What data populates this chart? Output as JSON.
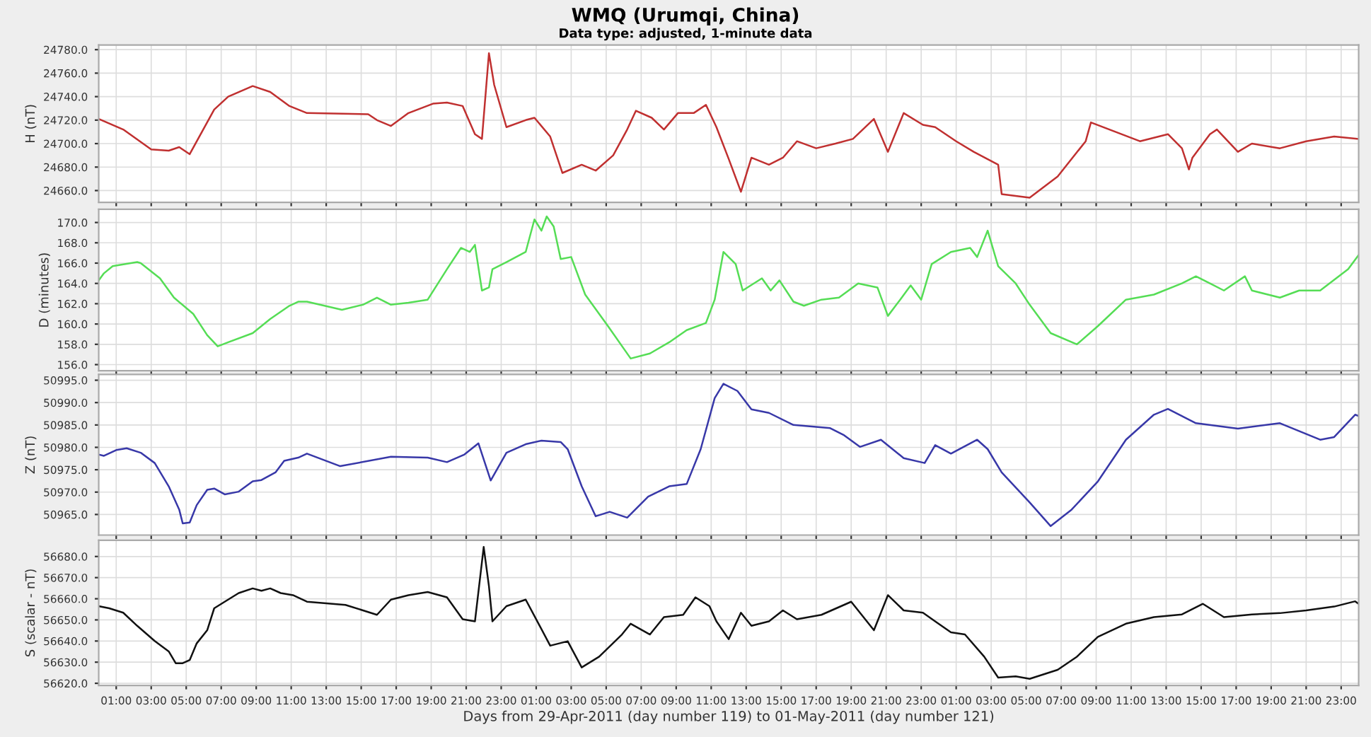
{
  "chart_data": [
    {
      "type": "line",
      "title": "WMQ (Urumqi, China)",
      "subtitle": "Data type: adjusted, 1-minute data",
      "ylabel": "H (nT)",
      "xlim": [
        "2011-04-29T00:00",
        "2011-05-02T00:00"
      ],
      "ylim": [
        24650,
        24784
      ],
      "yticks": [
        {
          "value": 24660,
          "label": "24660.0"
        },
        {
          "value": 24680,
          "label": "24680.0"
        },
        {
          "value": 24700,
          "label": "24700.0"
        },
        {
          "value": 24720,
          "label": "24720.0"
        },
        {
          "value": 24740,
          "label": "24740.0"
        },
        {
          "value": 24760,
          "label": "24760.0"
        },
        {
          "value": 24780,
          "label": "24780.0"
        }
      ],
      "grid": true,
      "tick_labels": "y",
      "series": [
        {
          "color": "#c03030",
          "x": [
            "2011-04-29T00:00",
            "2011-04-29T01:24",
            "2011-04-29T03:00",
            "2011-04-29T04:00",
            "2011-04-29T04:36",
            "2011-04-29T05:12",
            "2011-04-29T06:36",
            "2011-04-29T07:24",
            "2011-04-29T08:48",
            "2011-04-29T09:48",
            "2011-04-29T10:54",
            "2011-04-29T11:54",
            "2011-04-29T15:24",
            "2011-04-29T15:54",
            "2011-04-29T16:42",
            "2011-04-29T17:42",
            "2011-04-29T19:06",
            "2011-04-29T19:54",
            "2011-04-29T20:48",
            "2011-04-29T21:30",
            "2011-04-29T21:54",
            "2011-04-29T22:18",
            "2011-04-29T22:36",
            "2011-04-29T23:18",
            "2011-04-30T00:24",
            "2011-04-30T00:54",
            "2011-04-30T01:48",
            "2011-04-30T02:30",
            "2011-04-30T03:36",
            "2011-04-30T04:24",
            "2011-04-30T05:24",
            "2011-04-30T06:12",
            "2011-04-30T06:42",
            "2011-04-30T07:36",
            "2011-04-30T08:18",
            "2011-04-30T09:06",
            "2011-04-30T10:00",
            "2011-04-30T10:42",
            "2011-04-30T11:18",
            "2011-04-30T12:00",
            "2011-04-30T12:42",
            "2011-04-30T13:18",
            "2011-04-30T14:18",
            "2011-04-30T15:06",
            "2011-04-30T15:54",
            "2011-04-30T17:00",
            "2011-04-30T18:06",
            "2011-04-30T19:06",
            "2011-04-30T20:18",
            "2011-04-30T21:06",
            "2011-04-30T22:00",
            "2011-04-30T23:06",
            "2011-04-30T23:48",
            "2011-05-01T01:00",
            "2011-05-01T02:00",
            "2011-05-01T03:24",
            "2011-05-01T03:36",
            "2011-05-01T05:12",
            "2011-05-01T06:48",
            "2011-05-01T08:24",
            "2011-05-01T08:42",
            "2011-05-01T11:30",
            "2011-05-01T13:06",
            "2011-05-01T13:54",
            "2011-05-01T14:18",
            "2011-05-01T14:30",
            "2011-05-01T15:30",
            "2011-05-01T15:54",
            "2011-05-01T17:06",
            "2011-05-01T17:54",
            "2011-05-01T19:30",
            "2011-05-01T21:00",
            "2011-05-01T22:36",
            "2011-05-02T00:00"
          ],
          "values": [
            24721,
            24712,
            24695,
            24694,
            24697,
            24691,
            24729,
            24740,
            24749,
            24744,
            24732,
            24726,
            24725,
            24720,
            24715,
            24726,
            24734,
            24735,
            24732,
            24708,
            24704,
            24777,
            24750,
            24714,
            24720,
            24722,
            24706,
            24675,
            24682,
            24677,
            24690,
            24712,
            24728,
            24722,
            24712,
            24726,
            24726,
            24733,
            24714,
            24687,
            24659,
            24688,
            24682,
            24688,
            24702,
            24696,
            24700,
            24704,
            24721,
            24693,
            24726,
            24716,
            24714,
            24702,
            24693,
            24682,
            24657,
            24654,
            24672,
            24702,
            24718,
            24702,
            24708,
            24696,
            24678,
            24688,
            24708,
            24712,
            24693,
            24700,
            24696,
            24702,
            24706,
            24704
          ]
        }
      ]
    },
    {
      "type": "line",
      "ylabel": "D (minutes)",
      "xlim": [
        "2011-04-29T00:00",
        "2011-05-02T00:00"
      ],
      "ylim": [
        155.4,
        171.3
      ],
      "yticks": [
        {
          "value": 156,
          "label": "156.0"
        },
        {
          "value": 158,
          "label": "158.0"
        },
        {
          "value": 160,
          "label": "160.0"
        },
        {
          "value": 162,
          "label": "162.0"
        },
        {
          "value": 164,
          "label": "164.0"
        },
        {
          "value": 166,
          "label": "166.0"
        },
        {
          "value": 168,
          "label": "168.0"
        },
        {
          "value": 170,
          "label": "170.0"
        }
      ],
      "grid": true,
      "tick_labels": "y",
      "series": [
        {
          "color": "#55dd55",
          "x": [
            "2011-04-29T00:00",
            "2011-04-29T00:18",
            "2011-04-29T00:48",
            "2011-04-29T02:12",
            "2011-04-29T02:24",
            "2011-04-29T03:30",
            "2011-04-29T04:18",
            "2011-04-29T05:24",
            "2011-04-29T06:12",
            "2011-04-29T06:48",
            "2011-04-29T07:24",
            "2011-04-29T08:48",
            "2011-04-29T09:48",
            "2011-04-29T10:54",
            "2011-04-29T11:24",
            "2011-04-29T11:54",
            "2011-04-29T13:54",
            "2011-04-29T15:06",
            "2011-04-29T15:54",
            "2011-04-29T16:42",
            "2011-04-29T17:42",
            "2011-04-29T18:48",
            "2011-04-29T19:54",
            "2011-04-29T20:42",
            "2011-04-29T21:12",
            "2011-04-29T21:30",
            "2011-04-29T21:54",
            "2011-04-29T22:18",
            "2011-04-29T22:30",
            "2011-04-29T23:18",
            "2011-04-30T00:24",
            "2011-04-30T00:54",
            "2011-04-30T01:18",
            "2011-04-30T01:36",
            "2011-04-30T02:00",
            "2011-04-30T02:24",
            "2011-04-30T03:00",
            "2011-04-30T03:48",
            "2011-04-30T05:06",
            "2011-04-30T06:24",
            "2011-04-30T07:30",
            "2011-04-30T08:36",
            "2011-04-30T09:36",
            "2011-04-30T10:42",
            "2011-04-30T11:12",
            "2011-04-30T11:42",
            "2011-04-30T12:24",
            "2011-04-30T12:48",
            "2011-04-30T13:54",
            "2011-04-30T14:24",
            "2011-04-30T14:54",
            "2011-04-30T15:42",
            "2011-04-30T16:18",
            "2011-04-30T17:18",
            "2011-04-30T18:18",
            "2011-04-30T19:24",
            "2011-04-30T20:30",
            "2011-04-30T21:06",
            "2011-04-30T21:48",
            "2011-04-30T22:24",
            "2011-04-30T23:00",
            "2011-04-30T23:36",
            "2011-05-01T00:42",
            "2011-05-01T01:48",
            "2011-05-01T02:12",
            "2011-05-01T02:48",
            "2011-05-01T03:24",
            "2011-05-01T04:24",
            "2011-05-01T05:12",
            "2011-05-01T06:24",
            "2011-05-01T07:54",
            "2011-05-01T09:06",
            "2011-05-01T10:42",
            "2011-05-01T12:18",
            "2011-05-01T13:54",
            "2011-05-01T14:42",
            "2011-05-01T15:30",
            "2011-05-01T16:18",
            "2011-05-01T17:30",
            "2011-05-01T17:54",
            "2011-05-01T19:30",
            "2011-05-01T20:36",
            "2011-05-01T21:48",
            "2011-05-01T23:24",
            "2011-05-02T00:00"
          ],
          "values": [
            164.3,
            165.0,
            165.7,
            166.1,
            166.0,
            164.5,
            162.6,
            161.0,
            158.9,
            157.8,
            158.2,
            159.1,
            160.5,
            161.8,
            162.2,
            162.2,
            161.4,
            161.9,
            162.6,
            161.9,
            162.1,
            162.4,
            165.4,
            167.5,
            167.1,
            167.8,
            163.3,
            163.6,
            165.4,
            166.1,
            167.1,
            170.3,
            169.2,
            170.6,
            169.6,
            166.4,
            166.6,
            162.9,
            159.8,
            156.6,
            157.1,
            158.2,
            159.4,
            160.1,
            162.4,
            167.1,
            165.9,
            163.3,
            164.5,
            163.3,
            164.3,
            162.2,
            161.8,
            162.4,
            162.6,
            164.0,
            163.6,
            160.8,
            162.4,
            163.8,
            162.4,
            165.9,
            167.1,
            167.5,
            166.6,
            169.2,
            165.7,
            164.0,
            161.9,
            159.1,
            158.0,
            159.8,
            162.4,
            162.9,
            164.0,
            164.7,
            164.0,
            163.3,
            164.7,
            163.3,
            162.6,
            163.3,
            163.3,
            165.4,
            166.8
          ]
        }
      ]
    },
    {
      "type": "line",
      "ylabel": "Z (nT)",
      "xlim": [
        "2011-04-29T00:00",
        "2011-05-02T00:00"
      ],
      "ylim": [
        50960.4,
        50996.3
      ],
      "yticks": [
        {
          "value": 50965,
          "label": "50965.0"
        },
        {
          "value": 50970,
          "label": "50970.0"
        },
        {
          "value": 50975,
          "label": "50975.0"
        },
        {
          "value": 50980,
          "label": "50980.0"
        },
        {
          "value": 50985,
          "label": "50985.0"
        },
        {
          "value": 50990,
          "label": "50990.0"
        },
        {
          "value": 50995,
          "label": "50995.0"
        }
      ],
      "grid": true,
      "tick_labels": "y",
      "series": [
        {
          "color": "#3838a8",
          "x": [
            "2011-04-29T00:00",
            "2011-04-29T00:18",
            "2011-04-29T01:00",
            "2011-04-29T01:36",
            "2011-04-29T02:24",
            "2011-04-29T03:12",
            "2011-04-29T04:00",
            "2011-04-29T04:36",
            "2011-04-29T04:48",
            "2011-04-29T05:12",
            "2011-04-29T05:36",
            "2011-04-29T06:12",
            "2011-04-29T06:36",
            "2011-04-29T07:12",
            "2011-04-29T08:00",
            "2011-04-29T08:48",
            "2011-04-29T09:18",
            "2011-04-29T10:06",
            "2011-04-29T10:36",
            "2011-04-29T11:24",
            "2011-04-29T11:54",
            "2011-04-29T13:48",
            "2011-04-29T16:42",
            "2011-04-29T18:48",
            "2011-04-29T19:54",
            "2011-04-29T20:54",
            "2011-04-29T21:42",
            "2011-04-29T22:24",
            "2011-04-29T23:18",
            "2011-04-30T00:24",
            "2011-04-30T01:18",
            "2011-04-30T02:24",
            "2011-04-30T02:48",
            "2011-04-30T03:36",
            "2011-04-30T04:24",
            "2011-04-30T05:12",
            "2011-04-30T06:12",
            "2011-04-30T07:24",
            "2011-04-30T08:36",
            "2011-04-30T09:36",
            "2011-04-30T10:24",
            "2011-04-30T11:12",
            "2011-04-30T11:42",
            "2011-04-30T12:30",
            "2011-04-30T13:18",
            "2011-04-30T14:18",
            "2011-04-30T15:42",
            "2011-04-30T17:48",
            "2011-04-30T18:36",
            "2011-04-30T19:30",
            "2011-04-30T20:42",
            "2011-04-30T22:00",
            "2011-04-30T23:12",
            "2011-04-30T23:48",
            "2011-05-01T00:42",
            "2011-05-01T02:12",
            "2011-05-01T02:48",
            "2011-05-01T03:36",
            "2011-05-01T05:12",
            "2011-05-01T06:24",
            "2011-05-01T07:36",
            "2011-05-01T09:06",
            "2011-05-01T10:42",
            "2011-05-01T12:18",
            "2011-05-01T13:06",
            "2011-05-01T14:42",
            "2011-05-01T17:06",
            "2011-05-01T19:30",
            "2011-05-01T21:48",
            "2011-05-01T22:36",
            "2011-05-01T23:48",
            "2011-05-02T00:00"
          ],
          "values": [
            50978.4,
            50978.1,
            50979.4,
            50979.8,
            50978.8,
            50976.5,
            50971.3,
            50966.1,
            50963.0,
            50963.2,
            50967.1,
            50970.5,
            50970.8,
            50969.5,
            50970.1,
            50972.4,
            50972.7,
            50974.4,
            50977.0,
            50977.7,
            50978.6,
            50975.8,
            50977.9,
            50977.7,
            50976.7,
            50978.4,
            50980.9,
            50972.6,
            50978.8,
            50980.7,
            50981.5,
            50981.2,
            50979.6,
            50971.3,
            50964.6,
            50965.6,
            50964.3,
            50969.0,
            50971.3,
            50971.8,
            50979.6,
            50991.0,
            50994.2,
            50992.6,
            50988.5,
            50987.7,
            50985.0,
            50984.3,
            50982.7,
            50980.1,
            50981.7,
            50977.6,
            50976.5,
            50980.5,
            50978.6,
            50981.7,
            50979.6,
            50974.4,
            50967.7,
            50962.4,
            50966.1,
            50972.4,
            50981.7,
            50987.3,
            50988.6,
            50985.4,
            50984.2,
            50985.4,
            50981.7,
            50982.3,
            50987.3,
            50987.0
          ]
        }
      ]
    },
    {
      "type": "line",
      "ylabel": "S (scalar - nT)",
      "xlabel": "Days from 29-Apr-2011 (day number 119) to 01-May-2011 (day number 121)",
      "xlim": [
        "2011-04-29T00:00",
        "2011-05-02T00:00"
      ],
      "ylim": [
        56619,
        56687.7
      ],
      "yticks": [
        {
          "value": 56620,
          "label": "56620.0"
        },
        {
          "value": 56630,
          "label": "56630.0"
        },
        {
          "value": 56640,
          "label": "56640.0"
        },
        {
          "value": 56650,
          "label": "56650.0"
        },
        {
          "value": 56660,
          "label": "56660.0"
        },
        {
          "value": 56670,
          "label": "56670.0"
        },
        {
          "value": 56680,
          "label": "56680.0"
        }
      ],
      "grid": true,
      "xticks": [
        {
          "value": "2011-04-29T01:00",
          "label": "01:00"
        },
        {
          "value": "2011-04-29T03:00",
          "label": "03:00"
        },
        {
          "value": "2011-04-29T05:00",
          "label": "05:00"
        },
        {
          "value": "2011-04-29T07:00",
          "label": "07:00"
        },
        {
          "value": "2011-04-29T09:00",
          "label": "09:00"
        },
        {
          "value": "2011-04-29T11:00",
          "label": "11:00"
        },
        {
          "value": "2011-04-29T13:00",
          "label": "13:00"
        },
        {
          "value": "2011-04-29T15:00",
          "label": "15:00"
        },
        {
          "value": "2011-04-29T17:00",
          "label": "17:00"
        },
        {
          "value": "2011-04-29T19:00",
          "label": "19:00"
        },
        {
          "value": "2011-04-29T21:00",
          "label": "21:00"
        },
        {
          "value": "2011-04-29T23:00",
          "label": "23:00"
        },
        {
          "value": "2011-04-30T01:00",
          "label": "01:00"
        },
        {
          "value": "2011-04-30T03:00",
          "label": "03:00"
        },
        {
          "value": "2011-04-30T05:00",
          "label": "05:00"
        },
        {
          "value": "2011-04-30T07:00",
          "label": "07:00"
        },
        {
          "value": "2011-04-30T09:00",
          "label": "09:00"
        },
        {
          "value": "2011-04-30T11:00",
          "label": "11:00"
        },
        {
          "value": "2011-04-30T13:00",
          "label": "13:00"
        },
        {
          "value": "2011-04-30T15:00",
          "label": "15:00"
        },
        {
          "value": "2011-04-30T17:00",
          "label": "17:00"
        },
        {
          "value": "2011-04-30T19:00",
          "label": "19:00"
        },
        {
          "value": "2011-04-30T21:00",
          "label": "21:00"
        },
        {
          "value": "2011-04-30T23:00",
          "label": "23:00"
        },
        {
          "value": "2011-05-01T01:00",
          "label": "01:00"
        },
        {
          "value": "2011-05-01T03:00",
          "label": "03:00"
        },
        {
          "value": "2011-05-01T05:00",
          "label": "05:00"
        },
        {
          "value": "2011-05-01T07:00",
          "label": "07:00"
        },
        {
          "value": "2011-05-01T09:00",
          "label": "09:00"
        },
        {
          "value": "2011-05-01T11:00",
          "label": "11:00"
        },
        {
          "value": "2011-05-01T13:00",
          "label": "13:00"
        },
        {
          "value": "2011-05-01T15:00",
          "label": "15:00"
        },
        {
          "value": "2011-05-01T17:00",
          "label": "17:00"
        },
        {
          "value": "2011-05-01T19:00",
          "label": "19:00"
        },
        {
          "value": "2011-05-01T21:00",
          "label": "21:00"
        },
        {
          "value": "2011-05-01T23:00",
          "label": "23:00"
        }
      ],
      "series": [
        {
          "color": "#111111",
          "x": [
            "2011-04-29T00:00",
            "2011-04-29T00:36",
            "2011-04-29T01:24",
            "2011-04-29T02:12",
            "2011-04-29T03:12",
            "2011-04-29T04:00",
            "2011-04-29T04:24",
            "2011-04-29T04:48",
            "2011-04-29T05:12",
            "2011-04-29T05:36",
            "2011-04-29T06:12",
            "2011-04-29T06:36",
            "2011-04-29T07:12",
            "2011-04-29T08:00",
            "2011-04-29T08:48",
            "2011-04-29T09:18",
            "2011-04-29T09:48",
            "2011-04-29T10:24",
            "2011-04-29T11:06",
            "2011-04-29T11:54",
            "2011-04-29T14:06",
            "2011-04-29T15:54",
            "2011-04-29T16:42",
            "2011-04-29T17:42",
            "2011-04-29T18:48",
            "2011-04-29T19:54",
            "2011-04-29T20:48",
            "2011-04-29T21:30",
            "2011-04-29T22:00",
            "2011-04-29T22:18",
            "2011-04-29T22:30",
            "2011-04-29T23:18",
            "2011-04-30T00:24",
            "2011-04-30T01:12",
            "2011-04-30T01:48",
            "2011-04-30T02:48",
            "2011-04-30T03:36",
            "2011-04-30T04:36",
            "2011-04-30T05:54",
            "2011-04-30T06:24",
            "2011-04-30T07:30",
            "2011-04-30T08:18",
            "2011-04-30T09:24",
            "2011-04-30T10:06",
            "2011-04-30T10:54",
            "2011-04-30T11:18",
            "2011-04-30T12:00",
            "2011-04-30T12:42",
            "2011-04-30T13:18",
            "2011-04-30T14:18",
            "2011-04-30T15:06",
            "2011-04-30T15:54",
            "2011-04-30T17:18",
            "2011-04-30T19:00",
            "2011-04-30T20:18",
            "2011-04-30T21:06",
            "2011-04-30T22:00",
            "2011-04-30T23:06",
            "2011-04-30T23:48",
            "2011-05-01T00:42",
            "2011-05-01T01:30",
            "2011-05-01T02:36",
            "2011-05-01T03:24",
            "2011-05-01T04:24",
            "2011-05-01T05:12",
            "2011-05-01T06:48",
            "2011-05-01T07:54",
            "2011-05-01T09:06",
            "2011-05-01T10:42",
            "2011-05-01T12:18",
            "2011-05-01T13:54",
            "2011-05-01T15:06",
            "2011-05-01T16:18",
            "2011-05-01T17:54",
            "2011-05-01T19:30",
            "2011-05-01T21:00",
            "2011-05-01T22:36",
            "2011-05-01T23:48",
            "2011-05-02T00:00"
          ],
          "values": [
            56656.5,
            56655.5,
            56653.4,
            56647.2,
            56640.0,
            56635.1,
            56629.5,
            56629.5,
            56631.0,
            56638.9,
            56645.1,
            56655.5,
            56658.6,
            56662.7,
            56664.9,
            56663.8,
            56664.9,
            56662.7,
            56661.7,
            56658.6,
            56657.1,
            56652.4,
            56659.6,
            56661.7,
            56663.2,
            56660.7,
            56650.3,
            56649.3,
            56684.5,
            56665.9,
            56649.3,
            56656.5,
            56659.6,
            56647.2,
            56637.8,
            56639.9,
            56627.5,
            56632.6,
            56643.1,
            56648.2,
            56643.1,
            56651.3,
            56652.4,
            56660.7,
            56656.5,
            56649.3,
            56640.9,
            56653.4,
            56647.2,
            56649.3,
            56654.5,
            56650.3,
            56652.4,
            56658.6,
            56645.1,
            56661.7,
            56654.5,
            56653.4,
            56649.3,
            56644.1,
            56643.1,
            56632.6,
            56622.7,
            56623.3,
            56622.1,
            56626.4,
            56632.6,
            56642.0,
            56648.2,
            56651.3,
            56652.6,
            56657.6,
            56651.3,
            56652.6,
            56653.2,
            56654.5,
            56656.3,
            56658.8,
            56657.6
          ]
        }
      ]
    }
  ]
}
